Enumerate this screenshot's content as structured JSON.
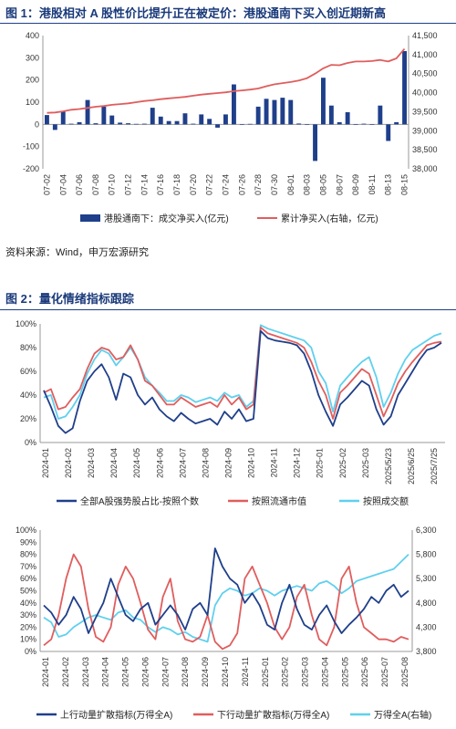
{
  "fig1": {
    "title": "图 1：港股相对 A 股性价比提升正在被定价：港股通南下买入创近期新高",
    "source": "资料来源：Wind，申万宏源研究"
  },
  "fig2": {
    "title": "图 2：量化情绪指标跟踪"
  },
  "colors": {
    "navy": "#1f3f8a",
    "red": "#e05d5d",
    "cyan": "#5fd0ee",
    "title": "#1a3a7a"
  },
  "chart_data": [
    {
      "type": "bar+line",
      "series": [
        {
          "name": "港股通南下：成交净买入(亿元)",
          "axis": "left",
          "kind": "bar",
          "values": [
            42,
            -25,
            58,
            3,
            10,
            110,
            5,
            80,
            40,
            8,
            5,
            2,
            3,
            75,
            35,
            15,
            15,
            50,
            3,
            45,
            25,
            -15,
            45,
            180,
            0,
            2,
            80,
            115,
            110,
            120,
            110,
            4,
            0,
            -165,
            210,
            85,
            10,
            55,
            0,
            3,
            0,
            85,
            -75,
            10,
            330
          ]
        },
        {
          "name": "累计净买入(右轴，亿元)",
          "axis": "right",
          "kind": "line",
          "values": [
            39470,
            39480,
            39510,
            39550,
            39570,
            39600,
            39630,
            39650,
            39680,
            39700,
            39720,
            39750,
            39780,
            39800,
            39830,
            39850,
            39870,
            39890,
            39920,
            39950,
            39970,
            39990,
            40010,
            40040,
            40060,
            40080,
            40110,
            40170,
            40220,
            40250,
            40280,
            40320,
            40380,
            40500,
            40640,
            40730,
            40720,
            40780,
            40820,
            40820,
            40830,
            40860,
            40820,
            40900,
            41150
          ]
        }
      ],
      "categories": [
        "07-02",
        "07-03",
        "07-04",
        "07-05",
        "07-06",
        "07-07",
        "07-08",
        "07-09",
        "07-10",
        "07-11",
        "07-12",
        "07-13",
        "07-14",
        "07-15",
        "07-16",
        "07-17",
        "07-18",
        "07-19",
        "07-20",
        "07-21",
        "07-22",
        "07-23",
        "07-24",
        "07-25",
        "07-26",
        "07-27",
        "07-28",
        "07-29",
        "07-30",
        "07-31",
        "08-01",
        "08-02",
        "08-03",
        "08-04",
        "08-05",
        "08-06",
        "08-07",
        "08-08",
        "08-09",
        "08-10",
        "08-11",
        "08-12",
        "08-13",
        "08-14",
        "08-15"
      ],
      "xticks": [
        "07-02",
        "07-04",
        "07-06",
        "07-08",
        "07-10",
        "07-12",
        "07-14",
        "07-16",
        "07-18",
        "07-20",
        "07-22",
        "07-24",
        "07-26",
        "07-28",
        "07-30",
        "08-01",
        "08-03",
        "08-05",
        "08-07",
        "08-09",
        "08-11",
        "08-13",
        "08-15"
      ],
      "yticks_left": [
        "400",
        "300",
        "200",
        "100",
        "0",
        "-100",
        "-200"
      ],
      "yticks_right": [
        "41,500",
        "41,000",
        "40,500",
        "40,000",
        "39,500",
        "39,000",
        "38,500",
        "38,000"
      ],
      "ylim_left": [
        -200,
        400
      ],
      "ylim_right": [
        38000,
        41500
      ],
      "legend_position": "bottom"
    },
    {
      "type": "line",
      "series": [
        {
          "name": "全部A股强势股占比-按照个数",
          "values": [
            44,
            30,
            14,
            8,
            12,
            35,
            52,
            60,
            66,
            55,
            36,
            58,
            55,
            40,
            32,
            38,
            28,
            22,
            18,
            25,
            20,
            16,
            18,
            20,
            15,
            26,
            20,
            28,
            18,
            20,
            94,
            88,
            86,
            85,
            84,
            82,
            75,
            60,
            40,
            26,
            14,
            32,
            38,
            45,
            52,
            48,
            28,
            15,
            22,
            40,
            50,
            60,
            70,
            78,
            80,
            84
          ]
        },
        {
          "name": "按照流通市值",
          "values": [
            42,
            45,
            28,
            30,
            38,
            45,
            62,
            75,
            80,
            78,
            70,
            72,
            82,
            70,
            52,
            48,
            40,
            32,
            32,
            38,
            34,
            30,
            32,
            34,
            30,
            40,
            32,
            38,
            28,
            32,
            97,
            92,
            90,
            88,
            86,
            84,
            80,
            68,
            52,
            40,
            20,
            42,
            48,
            55,
            62,
            58,
            40,
            22,
            35,
            50,
            60,
            68,
            75,
            82,
            84,
            85
          ]
        },
        {
          "name": "按照成交额",
          "values": [
            38,
            40,
            20,
            22,
            30,
            40,
            58,
            70,
            78,
            75,
            65,
            72,
            80,
            70,
            55,
            48,
            42,
            35,
            35,
            40,
            38,
            34,
            36,
            38,
            35,
            42,
            38,
            40,
            30,
            35,
            99,
            96,
            94,
            92,
            90,
            88,
            86,
            80,
            60,
            50,
            26,
            48,
            55,
            62,
            68,
            72,
            55,
            30,
            42,
            58,
            70,
            78,
            82,
            86,
            90,
            92
          ]
        }
      ],
      "xticks": [
        "2024-01",
        "2024-02",
        "2024-03",
        "2024-04",
        "2024-05",
        "2024-06",
        "2024-07",
        "2024-08",
        "2024-09",
        "2024-10",
        "2024-11",
        "2024-12",
        "2025-01",
        "2025-02",
        "2025-03",
        "2025/5/23",
        "2025/6/25",
        "2025/7/25"
      ],
      "yticks": [
        "100%",
        "80%",
        "60%",
        "40%",
        "20%",
        "0%"
      ],
      "ylim": [
        0,
        100
      ],
      "legend_position": "bottom"
    },
    {
      "type": "line",
      "series": [
        {
          "name": "上行动量扩散指标(万得全A)",
          "axis": "left",
          "values": [
            38,
            32,
            22,
            30,
            45,
            35,
            15,
            28,
            40,
            60,
            45,
            30,
            25,
            35,
            40,
            22,
            30,
            38,
            30,
            18,
            35,
            40,
            30,
            85,
            70,
            60,
            55,
            40,
            48,
            38,
            22,
            18,
            40,
            55,
            35,
            22,
            18,
            30,
            38,
            25,
            15,
            22,
            28,
            35,
            45,
            40,
            50,
            55,
            45,
            50
          ]
        },
        {
          "name": "下行动量扩散指标(万得全A)",
          "axis": "left",
          "values": [
            5,
            10,
            30,
            60,
            80,
            70,
            35,
            12,
            8,
            20,
            55,
            70,
            60,
            40,
            18,
            10,
            45,
            60,
            25,
            10,
            8,
            12,
            30,
            8,
            2,
            5,
            15,
            60,
            70,
            55,
            40,
            20,
            10,
            20,
            45,
            55,
            30,
            10,
            5,
            20,
            60,
            70,
            40,
            20,
            15,
            10,
            10,
            8,
            12,
            10
          ]
        },
        {
          "name": "万得全A(右轴)",
          "axis": "right",
          "values": [
            4500,
            4400,
            4100,
            4150,
            4300,
            4400,
            4500,
            4550,
            4500,
            4450,
            4600,
            4650,
            4500,
            4450,
            4300,
            4200,
            4300,
            4250,
            4150,
            4200,
            4100,
            4050,
            4000,
            4750,
            5000,
            5100,
            5050,
            4950,
            5000,
            5100,
            5050,
            4950,
            5050,
            5100,
            5150,
            5100,
            5050,
            5200,
            5250,
            5150,
            5000,
            5100,
            5250,
            5300,
            5350,
            5400,
            5450,
            5500,
            5650,
            5800
          ]
        }
      ],
      "xticks": [
        "2024-01",
        "2024-02",
        "2024-03",
        "2024-04",
        "2024-05",
        "2024-06",
        "2024-07",
        "2024-08",
        "2024-09",
        "2024-10",
        "2024-11",
        "2025-01",
        "2025-02",
        "2025-03",
        "2025-04",
        "2025-05",
        "2025-06",
        "2025-07",
        "2025-08"
      ],
      "yticks_left": [
        "100%",
        "90%",
        "80%",
        "70%",
        "60%",
        "50%",
        "40%",
        "30%",
        "20%",
        "10%",
        "0%"
      ],
      "yticks_right": [
        "6,300",
        "5,800",
        "5,300",
        "4,800",
        "4,300",
        "3,800"
      ],
      "ylim_left": [
        0,
        100
      ],
      "ylim_right": [
        3800,
        6300
      ],
      "legend_position": "bottom"
    }
  ]
}
